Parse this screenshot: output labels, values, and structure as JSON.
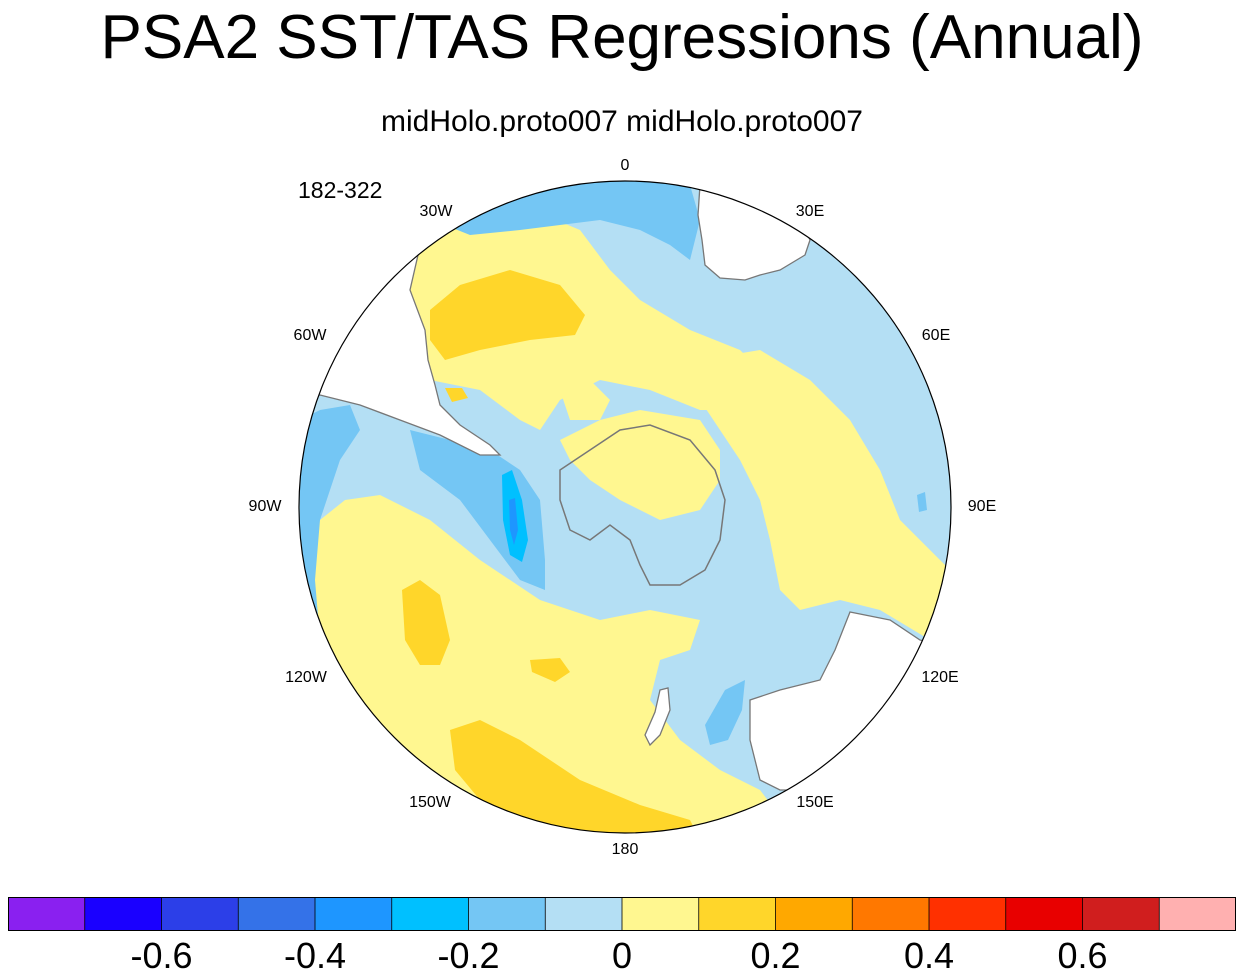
{
  "title": "PSA2 SST/TAS Regressions (Annual)",
  "subtitle": "midHolo.proto007  midHolo.proto007",
  "years": "182-322",
  "projection": "south-polar-stereographic",
  "longitude_labels": [
    {
      "id": "lon-0",
      "text": "0"
    },
    {
      "id": "lon-30e",
      "text": "30E"
    },
    {
      "id": "lon-60e",
      "text": "60E"
    },
    {
      "id": "lon-90e",
      "text": "90E"
    },
    {
      "id": "lon-120e",
      "text": "120E"
    },
    {
      "id": "lon-150e",
      "text": "150E"
    },
    {
      "id": "lon-180",
      "text": "180"
    },
    {
      "id": "lon-150w",
      "text": "150W"
    },
    {
      "id": "lon-120w",
      "text": "120W"
    },
    {
      "id": "lon-90w",
      "text": "90W"
    },
    {
      "id": "lon-60w",
      "text": "60W"
    },
    {
      "id": "lon-30w",
      "text": "30W"
    }
  ],
  "colorbar": {
    "colors": [
      "#8a20f0",
      "#1a00ff",
      "#2c3fe8",
      "#3472e8",
      "#1e96ff",
      "#00c0ff",
      "#74c6f4",
      "#b4dff4",
      "#fff790",
      "#ffd62a",
      "#ffa800",
      "#ff7800",
      "#ff3000",
      "#e80000",
      "#d01e1e",
      "#ffb0b0"
    ],
    "labels": [
      "-0.6",
      "-0.4",
      "-0.2",
      "0",
      "0.2",
      "0.4",
      "0.6"
    ]
  },
  "colors": {
    "coast": "#777777",
    "land": "#ffffff"
  }
}
